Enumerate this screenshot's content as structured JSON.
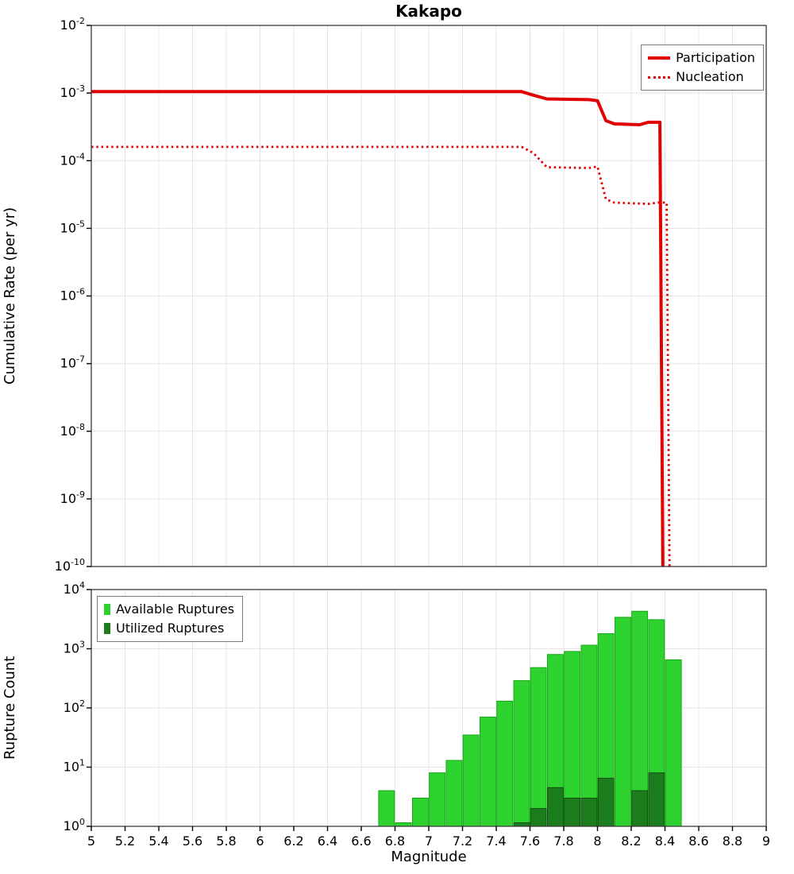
{
  "title": "Kakapo",
  "chart_data": [
    {
      "type": "line",
      "title": "Kakapo",
      "ylabel": "Cumulative Rate (per yr)",
      "xlim": [
        5,
        9
      ],
      "xtick_step": 0.2,
      "ylog": true,
      "ylim_exp": [
        -10,
        -2
      ],
      "grid": true,
      "legend_position": "top-right",
      "series": [
        {
          "name": "Participation",
          "color": "#e00000",
          "style": "solid",
          "x": [
            5.0,
            7.55,
            7.62,
            7.7,
            7.95,
            8.0,
            8.05,
            8.1,
            8.25,
            8.3,
            8.37,
            8.39
          ],
          "y": [
            0.00105,
            0.00105,
            0.00093,
            0.00082,
            0.0008,
            0.00077,
            0.00039,
            0.00035,
            0.00034,
            0.00037,
            0.00037,
            1e-11
          ]
        },
        {
          "name": "Nucleation",
          "color": "#e00000",
          "style": "dotted",
          "x": [
            5.0,
            7.55,
            7.62,
            7.7,
            7.95,
            8.0,
            8.05,
            8.1,
            8.3,
            8.36,
            8.41,
            8.43
          ],
          "y": [
            0.00016,
            0.00016,
            0.00013,
            8e-05,
            7.8e-05,
            8.2e-05,
            2.7e-05,
            2.4e-05,
            2.3e-05,
            2.4e-05,
            2.4e-05,
            1e-11
          ]
        }
      ]
    },
    {
      "type": "bar",
      "xlabel": "Magnitude",
      "ylabel": "Rupture Count",
      "xlim": [
        5,
        9
      ],
      "xtick_step": 0.2,
      "ylog": true,
      "ylim_exp": [
        0,
        4
      ],
      "bar_width": 0.1,
      "grid": true,
      "legend_position": "top-left",
      "series": [
        {
          "name": "Available Ruptures",
          "color": "#2fd32f",
          "edge": "#17a817",
          "centers": [
            6.75,
            6.85,
            6.95,
            7.05,
            7.15,
            7.25,
            7.35,
            7.45,
            7.55,
            7.65,
            7.75,
            7.85,
            7.95,
            8.05,
            8.15,
            8.25,
            8.35,
            8.45
          ],
          "values": [
            4,
            1.15,
            3,
            8,
            13,
            35,
            70,
            130,
            290,
            480,
            800,
            900,
            1150,
            1800,
            3400,
            4300,
            3100,
            650
          ]
        },
        {
          "name": "Utilized Ruptures",
          "color": "#1c7d1c",
          "edge": "#0e4f0e",
          "centers": [
            7.55,
            7.65,
            7.75,
            7.85,
            7.95,
            8.05,
            8.25,
            8.35
          ],
          "values": [
            1.15,
            2,
            4.5,
            3,
            3,
            6.5,
            4,
            8
          ]
        }
      ]
    }
  ]
}
